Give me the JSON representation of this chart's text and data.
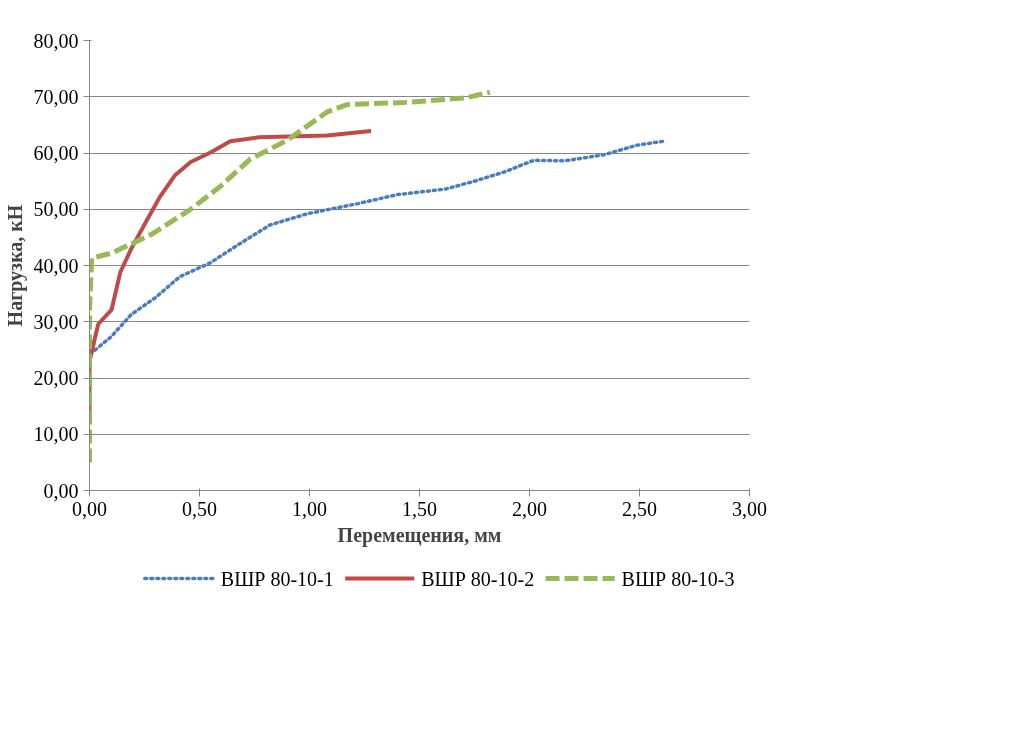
{
  "chart_data": {
    "type": "line",
    "xlabel": "Перемещения, мм",
    "ylabel": "Нагрузка, кН",
    "xlim": [
      0,
      3
    ],
    "ylim": [
      0,
      80
    ],
    "xticks": [
      {
        "value": 0,
        "label": "0,00"
      },
      {
        "value": 0.5,
        "label": "0,50"
      },
      {
        "value": 1,
        "label": "1,00"
      },
      {
        "value": 1.5,
        "label": "1,50"
      },
      {
        "value": 2,
        "label": "2,00"
      },
      {
        "value": 2.5,
        "label": "2,50"
      },
      {
        "value": 3,
        "label": "3,00"
      }
    ],
    "yticks": [
      {
        "value": 0,
        "label": "0,00"
      },
      {
        "value": 10,
        "label": "10,00"
      },
      {
        "value": 20,
        "label": "20,00"
      },
      {
        "value": 30,
        "label": "30,00"
      },
      {
        "value": 40,
        "label": "40,00"
      },
      {
        "value": 50,
        "label": "50,00"
      },
      {
        "value": 60,
        "label": "60,00"
      },
      {
        "value": 70,
        "label": "70,00"
      },
      {
        "value": 80,
        "label": "80,00"
      }
    ],
    "grid": "y",
    "legend": "bottom",
    "series": [
      {
        "name": "ВШР 80-10-1",
        "color": "#4a7ebb",
        "line_style": "dotted",
        "x": [
          0,
          0.02,
          0.1,
          0.19,
          0.3,
          0.41,
          0.55,
          0.68,
          0.82,
          0.99,
          1.22,
          1.4,
          1.62,
          1.76,
          1.89,
          2.02,
          2.16,
          2.34,
          2.49,
          2.61
        ],
        "values": [
          24.6,
          24.8,
          27.4,
          31.3,
          34.3,
          38.0,
          40.5,
          43.8,
          47.2,
          49.2,
          51.0,
          52.6,
          53.6,
          55.1,
          56.7,
          58.7,
          58.6,
          59.7,
          61.4,
          62.1
        ]
      },
      {
        "name": "ВШР 80-10-2",
        "color": "#be4b48",
        "line_style": "solid",
        "x": [
          0,
          0,
          0.02,
          0.04,
          0.1,
          0.14,
          0.19,
          0.26,
          0.32,
          0.39,
          0.46,
          0.55,
          0.64,
          0.77,
          1.08,
          1.28
        ],
        "values": [
          12.9,
          22.9,
          26.3,
          29.6,
          32.1,
          38.8,
          43.0,
          48.0,
          52.2,
          56.1,
          58.4,
          60.1,
          62.1,
          62.8,
          63.1,
          63.9
        ]
      },
      {
        "name": "ВШР 80-10-3",
        "color": "#98b954",
        "line_style": "dashed",
        "x": [
          0,
          0,
          0.01,
          0.1,
          0.28,
          0.46,
          0.59,
          0.73,
          0.9,
          1.08,
          1.17,
          1.44,
          1.71,
          1.82
        ],
        "values": [
          5.0,
          32.1,
          41.3,
          42.2,
          45.5,
          50.0,
          53.9,
          58.9,
          62.3,
          67.3,
          68.6,
          69.0,
          69.8,
          70.8
        ]
      }
    ]
  }
}
